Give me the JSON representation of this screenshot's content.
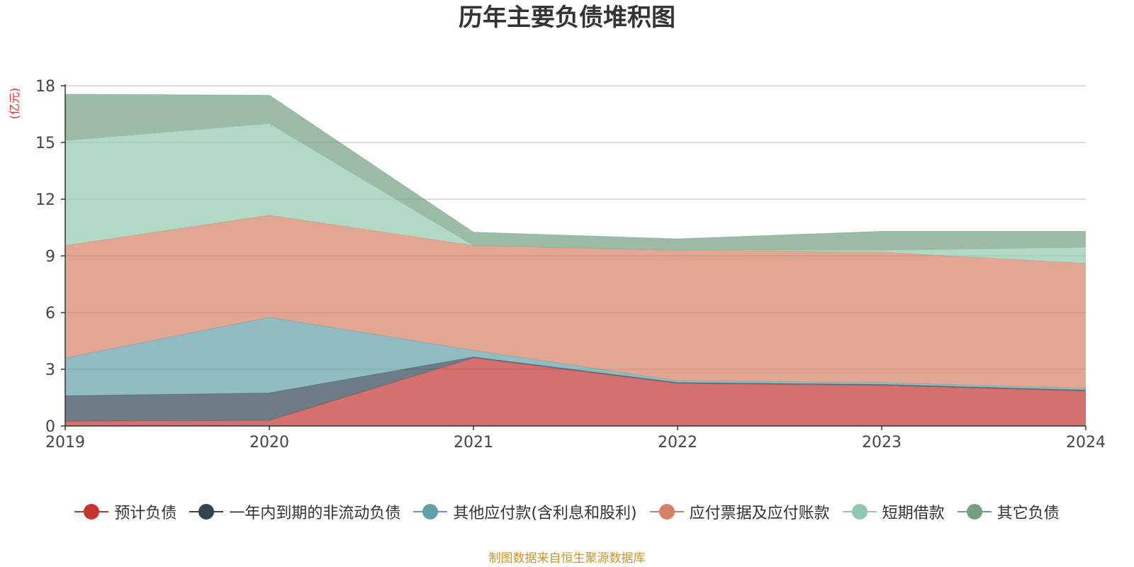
{
  "chart_data": {
    "type": "area",
    "stacked": true,
    "title": "历年主要负债堆积图",
    "y_unit": "(亿元)",
    "x": [
      "2019",
      "2020",
      "2021",
      "2022",
      "2023",
      "2024"
    ],
    "ylim": [
      0,
      18
    ],
    "yticks": [
      "0",
      "3",
      "6",
      "9",
      "12",
      "15",
      "18"
    ],
    "grid": true,
    "legend_position": "bottom",
    "series": [
      {
        "name": "预计负债",
        "color": "#c23531",
        "values": [
          0.25,
          0.3,
          3.6,
          2.25,
          2.15,
          1.85
        ]
      },
      {
        "name": "一年内到期的非流动负债",
        "color": "#2f4554",
        "values": [
          1.35,
          1.45,
          0.05,
          0.05,
          0.05,
          0.05
        ]
      },
      {
        "name": "其他应付款(含利息和股利)",
        "color": "#61a0a8",
        "values": [
          2.0,
          4.0,
          0.35,
          0.1,
          0.1,
          0.1
        ]
      },
      {
        "name": "应付票据及应付账款",
        "color": "#d48265",
        "values": [
          5.95,
          5.4,
          5.55,
          6.9,
          6.9,
          6.6
        ]
      },
      {
        "name": "短期借款",
        "color": "#91c7ae",
        "values": [
          5.55,
          4.85,
          0.0,
          0.0,
          0.1,
          0.85
        ]
      },
      {
        "name": "其它负债",
        "color": "#749f83",
        "values": [
          2.45,
          1.5,
          0.7,
          0.6,
          1.0,
          0.85
        ]
      }
    ]
  },
  "footer": {
    "source": "制图数据来自恒生聚源数据库"
  }
}
